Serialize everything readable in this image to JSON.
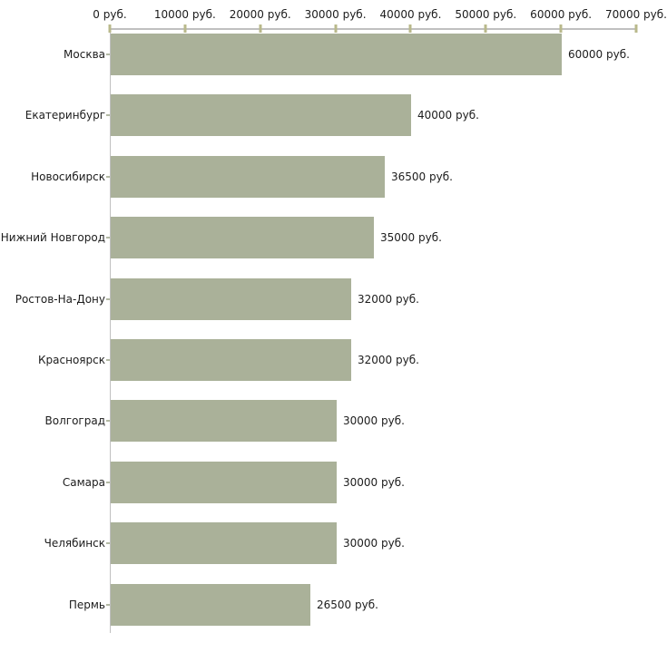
{
  "chart_data": {
    "type": "bar",
    "orientation": "horizontal",
    "title": "",
    "xlabel": "",
    "ylabel": "",
    "categories": [
      "Москва",
      "Екатеринбург",
      "Новосибирск",
      "Нижний Новгород",
      "Ростов-На-Дону",
      "Красноярск",
      "Волгоград",
      "Самара",
      "Челябинск",
      "Пермь"
    ],
    "values": [
      60000,
      40000,
      36500,
      35000,
      32000,
      32000,
      30000,
      30000,
      30000,
      26500
    ],
    "value_labels": [
      "60000 руб.",
      "40000 руб.",
      "36500 руб.",
      "35000 руб.",
      "32000 руб.",
      "32000 руб.",
      "30000 руб.",
      "30000 руб.",
      "30000 руб.",
      "26500 руб."
    ],
    "x_axis": {
      "position": "top",
      "min": 0,
      "max": 70000,
      "step": 10000,
      "tick_labels": [
        "0 руб.",
        "10000 руб.",
        "20000 руб.",
        "30000 руб.",
        "40000 руб.",
        "50000 руб.",
        "60000 руб.",
        "70000 руб."
      ]
    },
    "grid": false,
    "legend": false,
    "colors": {
      "bar_fill": "#aab199",
      "axis_line": "#c0c0c0",
      "axis_tick": "#b9b98b",
      "category_tick": "#b3b9a4",
      "text": "#1c1c1c",
      "background": "#ffffff"
    }
  }
}
